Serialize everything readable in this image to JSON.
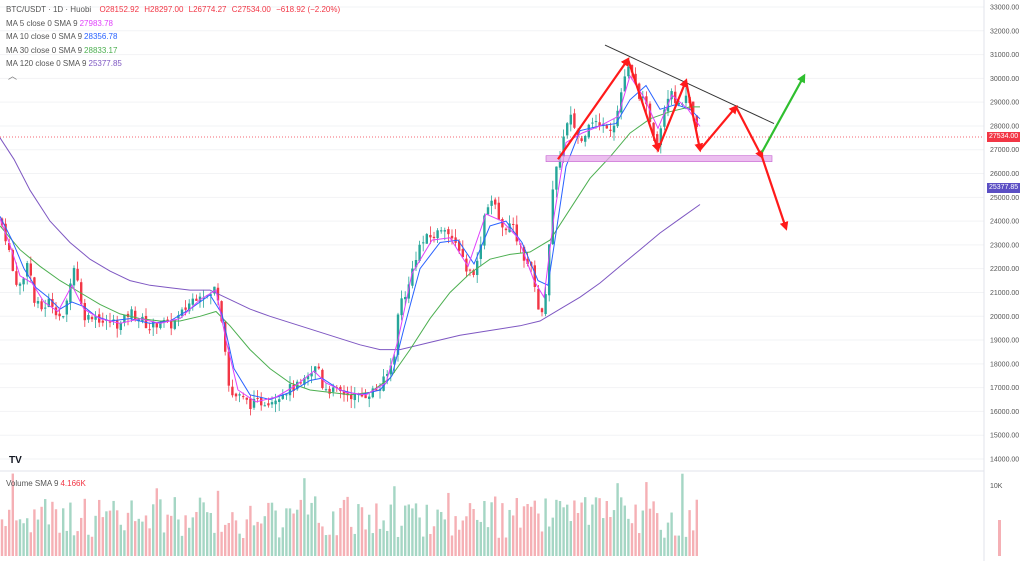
{
  "header": {
    "symbol": "BTC/USDT · 1D · Huobi",
    "open": "O28152.92",
    "high": "H28297.00",
    "low": "L26774.27",
    "close": "C27534.00",
    "change": "−618.92 (−2.20%)"
  },
  "indicators": [
    {
      "label": "MA 5 close 0 SMA 9",
      "value": "27983.78",
      "color": "#e040fb"
    },
    {
      "label": "MA 10 close 0 SMA 9",
      "value": "28356.78",
      "color": "#2962ff"
    },
    {
      "label": "MA 30 close 0 SMA 9",
      "value": "28833.17",
      "color": "#4caf50"
    },
    {
      "label": "MA 120 close 0 SMA 9",
      "value": "25377.85",
      "color": "#7e57c2"
    }
  ],
  "volume_indicator": {
    "label": "Volume SMA 9",
    "value": "4.166K"
  },
  "price_tags": {
    "last": {
      "text": "27534.00",
      "color": "#f23645"
    },
    "ma120": {
      "text": "25377.85",
      "color": "#5b4fc4"
    }
  },
  "colors": {
    "up": "#26a69a",
    "down": "#f23645",
    "annotation_red": "#ff1a1a",
    "annotation_green": "#2fbf2f",
    "trendline": "#333333",
    "support_zone": "#e6a8ea"
  },
  "chart_data": {
    "type": "candlestick",
    "y_axis": {
      "min": 14000,
      "max": 33000,
      "tick_step": 1000,
      "ticks": [
        "14000.00",
        "15000.00",
        "16000.00",
        "17000.00",
        "18000.00",
        "19000.00",
        "20000.00",
        "21000.00",
        "22000.00",
        "23000.00",
        "24000.00",
        "25000.00",
        "26000.00",
        "27000.00",
        "28000.00",
        "29000.00",
        "30000.00",
        "31000.00",
        "32000.00",
        "33000.00"
      ]
    },
    "volume_axis": {
      "ticks": [
        "10K"
      ]
    },
    "price_path": [
      [
        0,
        24100
      ],
      [
        8,
        23000
      ],
      [
        14,
        21600
      ],
      [
        22,
        21200
      ],
      [
        28,
        22600
      ],
      [
        34,
        20600
      ],
      [
        42,
        20300
      ],
      [
        50,
        20700
      ],
      [
        58,
        20100
      ],
      [
        64,
        19800
      ],
      [
        70,
        21500
      ],
      [
        76,
        22300
      ],
      [
        80,
        20600
      ],
      [
        86,
        19900
      ],
      [
        94,
        20100
      ],
      [
        104,
        19700
      ],
      [
        112,
        19800
      ],
      [
        120,
        19600
      ],
      [
        130,
        20200
      ],
      [
        140,
        19900
      ],
      [
        150,
        19500
      ],
      [
        160,
        19800
      ],
      [
        170,
        19600
      ],
      [
        180,
        20000
      ],
      [
        190,
        20600
      ],
      [
        200,
        21000
      ],
      [
        210,
        20800
      ],
      [
        216,
        21300
      ],
      [
        220,
        20400
      ],
      [
        224,
        19300
      ],
      [
        228,
        17200
      ],
      [
        232,
        16700
      ],
      [
        240,
        16600
      ],
      [
        250,
        16300
      ],
      [
        262,
        16400
      ],
      [
        272,
        16500
      ],
      [
        282,
        16800
      ],
      [
        292,
        17000
      ],
      [
        302,
        17100
      ],
      [
        312,
        17600
      ],
      [
        318,
        18000
      ],
      [
        322,
        17100
      ],
      [
        330,
        16900
      ],
      [
        340,
        16800
      ],
      [
        350,
        16700
      ],
      [
        360,
        16600
      ],
      [
        370,
        16800
      ],
      [
        380,
        17000
      ],
      [
        388,
        17600
      ],
      [
        394,
        18300
      ],
      [
        398,
        20000
      ],
      [
        402,
        20800
      ],
      [
        408,
        21100
      ],
      [
        414,
        22300
      ],
      [
        420,
        23000
      ],
      [
        428,
        23300
      ],
      [
        436,
        23400
      ],
      [
        444,
        23900
      ],
      [
        452,
        23100
      ],
      [
        460,
        22900
      ],
      [
        466,
        22000
      ],
      [
        472,
        21800
      ],
      [
        478,
        22300
      ],
      [
        484,
        24200
      ],
      [
        490,
        25000
      ],
      [
        496,
        24500
      ],
      [
        502,
        23600
      ],
      [
        508,
        23900
      ],
      [
        514,
        23600
      ],
      [
        518,
        23100
      ],
      [
        524,
        22500
      ],
      [
        530,
        22100
      ],
      [
        534,
        21600
      ],
      [
        538,
        20500
      ],
      [
        540,
        19700
      ],
      [
        544,
        20300
      ],
      [
        548,
        22300
      ],
      [
        552,
        25000
      ],
      [
        556,
        26000
      ],
      [
        560,
        26900
      ],
      [
        566,
        27900
      ],
      [
        572,
        28400
      ],
      [
        576,
        27700
      ],
      [
        582,
        27300
      ],
      [
        588,
        28200
      ],
      [
        594,
        28300
      ],
      [
        600,
        27900
      ],
      [
        606,
        28100
      ],
      [
        612,
        27900
      ],
      [
        618,
        28700
      ],
      [
        622,
        29600
      ],
      [
        626,
        30300
      ],
      [
        630,
        30400
      ],
      [
        636,
        29600
      ],
      [
        642,
        29100
      ],
      [
        648,
        28600
      ],
      [
        654,
        27700
      ],
      [
        658,
        27300
      ],
      [
        662,
        28300
      ],
      [
        666,
        29200
      ],
      [
        672,
        29600
      ],
      [
        678,
        28700
      ],
      [
        684,
        29200
      ],
      [
        690,
        28800
      ],
      [
        696,
        27900
      ],
      [
        700,
        27600
      ]
    ],
    "moving_averages": [
      {
        "name": "MA 120",
        "color": "#7e57c2",
        "points": [
          [
            0,
            27500
          ],
          [
            14,
            26600
          ],
          [
            30,
            25300
          ],
          [
            50,
            24000
          ],
          [
            70,
            23100
          ],
          [
            90,
            22400
          ],
          [
            110,
            21900
          ],
          [
            130,
            21500
          ],
          [
            150,
            21300
          ],
          [
            170,
            21200
          ],
          [
            190,
            21100
          ],
          [
            210,
            21100
          ],
          [
            230,
            20700
          ],
          [
            250,
            20300
          ],
          [
            270,
            20000
          ],
          [
            300,
            19600
          ],
          [
            330,
            19200
          ],
          [
            360,
            18800
          ],
          [
            380,
            18600
          ],
          [
            400,
            18600
          ],
          [
            430,
            18900
          ],
          [
            460,
            19200
          ],
          [
            490,
            19400
          ],
          [
            520,
            19600
          ],
          [
            540,
            19800
          ],
          [
            560,
            20300
          ],
          [
            580,
            20800
          ],
          [
            600,
            21400
          ],
          [
            620,
            22100
          ],
          [
            640,
            22800
          ],
          [
            660,
            23500
          ],
          [
            680,
            24100
          ],
          [
            700,
            24700
          ]
        ]
      },
      {
        "name": "MA 30",
        "color": "#4caf50",
        "points": [
          [
            0,
            23800
          ],
          [
            20,
            22800
          ],
          [
            40,
            22100
          ],
          [
            60,
            21500
          ],
          [
            80,
            21000
          ],
          [
            100,
            20500
          ],
          [
            120,
            20100
          ],
          [
            140,
            19900
          ],
          [
            160,
            19800
          ],
          [
            180,
            19800
          ],
          [
            200,
            20000
          ],
          [
            216,
            20200
          ],
          [
            230,
            19600
          ],
          [
            250,
            18600
          ],
          [
            270,
            17800
          ],
          [
            290,
            17200
          ],
          [
            310,
            16900
          ],
          [
            330,
            16800
          ],
          [
            350,
            16700
          ],
          [
            370,
            16800
          ],
          [
            390,
            17400
          ],
          [
            410,
            18600
          ],
          [
            430,
            19900
          ],
          [
            450,
            21000
          ],
          [
            470,
            21800
          ],
          [
            490,
            22400
          ],
          [
            510,
            22600
          ],
          [
            530,
            22700
          ],
          [
            550,
            23200
          ],
          [
            570,
            24500
          ],
          [
            590,
            25800
          ],
          [
            610,
            26700
          ],
          [
            630,
            27700
          ],
          [
            650,
            28300
          ],
          [
            670,
            28600
          ],
          [
            690,
            28800
          ],
          [
            700,
            28800
          ]
        ]
      },
      {
        "name": "MA 10",
        "color": "#2962ff",
        "points": [
          [
            0,
            24200
          ],
          [
            12,
            23200
          ],
          [
            24,
            22000
          ],
          [
            36,
            21200
          ],
          [
            48,
            20800
          ],
          [
            60,
            20300
          ],
          [
            72,
            20600
          ],
          [
            84,
            20400
          ],
          [
            96,
            20000
          ],
          [
            110,
            19800
          ],
          [
            130,
            19900
          ],
          [
            150,
            19700
          ],
          [
            170,
            19800
          ],
          [
            190,
            20300
          ],
          [
            210,
            20900
          ],
          [
            222,
            20100
          ],
          [
            234,
            17800
          ],
          [
            250,
            16700
          ],
          [
            270,
            16500
          ],
          [
            290,
            16800
          ],
          [
            310,
            17300
          ],
          [
            322,
            17400
          ],
          [
            340,
            16900
          ],
          [
            360,
            16700
          ],
          [
            380,
            16900
          ],
          [
            392,
            17500
          ],
          [
            404,
            19500
          ],
          [
            420,
            22000
          ],
          [
            440,
            23100
          ],
          [
            458,
            23200
          ],
          [
            474,
            22200
          ],
          [
            490,
            23800
          ],
          [
            506,
            24000
          ],
          [
            522,
            23100
          ],
          [
            538,
            21500
          ],
          [
            548,
            21300
          ],
          [
            556,
            23500
          ],
          [
            566,
            26300
          ],
          [
            580,
            27800
          ],
          [
            600,
            28000
          ],
          [
            616,
            28100
          ],
          [
            630,
            29100
          ],
          [
            646,
            29700
          ],
          [
            660,
            28700
          ],
          [
            676,
            28900
          ],
          [
            690,
            28700
          ],
          [
            700,
            28300
          ]
        ]
      },
      {
        "name": "MA 5",
        "color": "#e040fb",
        "points": [
          [
            0,
            24100
          ],
          [
            10,
            23000
          ],
          [
            20,
            21700
          ],
          [
            32,
            21400
          ],
          [
            44,
            20600
          ],
          [
            58,
            20200
          ],
          [
            72,
            21300
          ],
          [
            84,
            20300
          ],
          [
            100,
            19900
          ],
          [
            120,
            19700
          ],
          [
            140,
            19900
          ],
          [
            160,
            19700
          ],
          [
            180,
            19900
          ],
          [
            200,
            20700
          ],
          [
            216,
            21100
          ],
          [
            226,
            19000
          ],
          [
            238,
            16900
          ],
          [
            256,
            16400
          ],
          [
            276,
            16600
          ],
          [
            296,
            17100
          ],
          [
            314,
            17700
          ],
          [
            326,
            17200
          ],
          [
            346,
            16800
          ],
          [
            366,
            16700
          ],
          [
            386,
            17200
          ],
          [
            398,
            19000
          ],
          [
            412,
            21800
          ],
          [
            432,
            23200
          ],
          [
            450,
            23300
          ],
          [
            468,
            22100
          ],
          [
            486,
            24300
          ],
          [
            502,
            24000
          ],
          [
            518,
            23300
          ],
          [
            534,
            21500
          ],
          [
            544,
            20800
          ],
          [
            554,
            24200
          ],
          [
            566,
            27300
          ],
          [
            582,
            27700
          ],
          [
            600,
            28000
          ],
          [
            618,
            28400
          ],
          [
            630,
            30100
          ],
          [
            644,
            29200
          ],
          [
            658,
            27900
          ],
          [
            672,
            29300
          ],
          [
            688,
            28700
          ],
          [
            700,
            27980
          ]
        ]
      }
    ],
    "current_price_line": 27534,
    "support_zone": {
      "from": 26500,
      "to": 26750,
      "x_range": [
        546,
        772
      ]
    },
    "trendline": [
      [
        605,
        31400
      ],
      [
        774,
        28100
      ]
    ],
    "annotations": {
      "red_path": [
        [
          558,
          26600
        ],
        [
          628,
          30800
        ],
        [
          658,
          27000
        ],
        [
          686,
          29900
        ],
        [
          700,
          27000
        ],
        [
          736,
          28800
        ],
        [
          762,
          26700
        ],
        [
          786,
          23700
        ]
      ],
      "green_arrow": [
        [
          762,
          26900
        ],
        [
          804,
          30100
        ]
      ]
    }
  }
}
